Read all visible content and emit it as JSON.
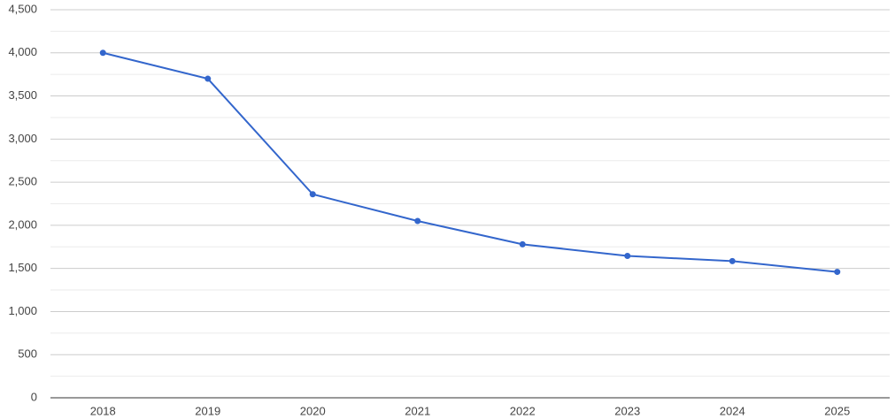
{
  "chart_data": {
    "type": "line",
    "categories": [
      "2018",
      "2019",
      "2020",
      "2021",
      "2022",
      "2023",
      "2024",
      "2025"
    ],
    "series": [
      {
        "color": "#3366cc",
        "values": [
          4000,
          3700,
          2360,
          2050,
          1780,
          1645,
          1585,
          1460
        ]
      }
    ],
    "ylim": [
      0,
      4500
    ],
    "yticks": [
      0,
      500,
      {
        "value": 1000,
        "label": "1,000"
      },
      {
        "value": 1500,
        "label": "1,500"
      },
      {
        "value": 2000,
        "label": "2,000"
      },
      {
        "value": 2500,
        "label": "2,500"
      },
      {
        "value": 3000,
        "label": "3,000"
      },
      {
        "value": 3500,
        "label": "3,500"
      },
      {
        "value": 4000,
        "label": "4,000"
      },
      {
        "value": 4500,
        "label": "4,500"
      }
    ],
    "yminor_ticks": [
      250,
      750,
      1250,
      1750,
      2250,
      2750,
      3250,
      3750,
      4250
    ],
    "grid": true
  }
}
